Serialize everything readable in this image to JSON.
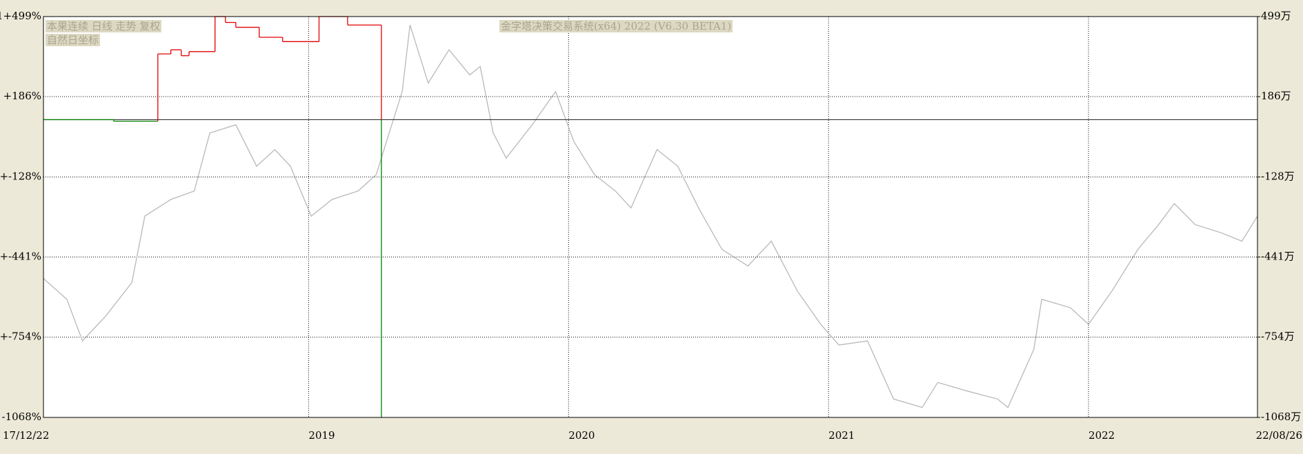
{
  "labels": {
    "symbol_line": "本果连续 日线 走势 复权",
    "axis_mode": "自然日坐标"
  },
  "chart_data": {
    "type": "line",
    "title": "金字塔决策交易系统(x64) 2022 (V6.30 BETA1)",
    "xlim": [
      2017.98,
      2022.65
    ],
    "xticks": [
      {
        "value": 2017.98,
        "label": "17/12/22"
      },
      2019,
      2020,
      2021,
      2022,
      {
        "value": 2022.65,
        "label": "22/08/26"
      }
    ],
    "ylim": [
      -1068,
      499
    ],
    "yticks": [
      {
        "value": 499,
        "label": "1+499%"
      },
      {
        "value": 186,
        "label": "+186%"
      },
      {
        "value": -128,
        "label": "+-128%"
      },
      {
        "value": -441,
        "label": "+-441%"
      },
      {
        "value": -754,
        "label": "+-754%"
      },
      {
        "value": -1068,
        "label": "-1068%"
      }
    ],
    "y2lim": [
      -1068,
      499
    ],
    "y2ticks": [
      {
        "value": 499,
        "label": "499万"
      },
      {
        "value": 186,
        "label": "186万"
      },
      {
        "value": -128,
        "label": "-128万"
      },
      {
        "value": -441,
        "label": "-441万"
      },
      {
        "value": -754,
        "label": "-754万"
      },
      {
        "value": -1068,
        "label": "-1068万"
      }
    ],
    "grid": true,
    "baseline": 96,
    "price": {
      "color": "#b8b8b8",
      "x": [
        2017.98,
        2018.07,
        2018.13,
        2018.22,
        2018.32,
        2018.37,
        2018.47,
        2018.56,
        2018.62,
        2018.72,
        2018.8,
        2018.87,
        2018.93,
        2019.01,
        2019.09,
        2019.19,
        2019.26,
        2019.31,
        2019.36,
        2019.39,
        2019.46,
        2019.54,
        2019.62,
        2019.66,
        2019.71,
        2019.76,
        2019.86,
        2019.95,
        2020.02,
        2020.1,
        2020.18,
        2020.24,
        2020.34,
        2020.42,
        2020.5,
        2020.59,
        2020.69,
        2020.78,
        2020.88,
        2020.97,
        2021.04,
        2021.15,
        2021.25,
        2021.36,
        2021.42,
        2021.53,
        2021.65,
        2021.69,
        2021.79,
        2021.82,
        2021.93,
        2022.0,
        2022.09,
        2022.19,
        2022.27,
        2022.33,
        2022.41,
        2022.51,
        2022.59,
        2022.65
      ],
      "values": [
        -525,
        -606,
        -769,
        -671,
        -541,
        -281,
        -216,
        -183,
        44,
        76,
        -86,
        -21,
        -86,
        -281,
        -216,
        -183,
        -119,
        44,
        206,
        466,
        239,
        369,
        271,
        304,
        44,
        -54,
        76,
        206,
        11,
        -119,
        -183,
        -249,
        -21,
        -86,
        -249,
        -411,
        -476,
        -379,
        -574,
        -704,
        -785,
        -769,
        -996,
        -1029,
        -931,
        -964,
        -996,
        -1029,
        -801,
        -606,
        -639,
        -704,
        -574,
        -411,
        -314,
        -232,
        -314,
        -346,
        -379,
        -281
      ]
    },
    "equity": {
      "up_color": "#e00000",
      "down_color": "#008000",
      "x": [
        2017.98,
        2018.25,
        2018.25,
        2018.42,
        2018.42,
        2018.47,
        2018.47,
        2018.51,
        2018.51,
        2018.54,
        2018.54,
        2018.64,
        2018.64,
        2018.68,
        2018.68,
        2018.72,
        2018.72,
        2018.81,
        2018.81,
        2018.9,
        2018.9,
        2019.04,
        2019.04,
        2019.15,
        2019.15,
        2019.28,
        2019.28,
        2019.28
      ],
      "values": [
        96,
        96,
        90,
        90,
        353,
        353,
        369,
        369,
        346,
        346,
        362,
        362,
        499,
        499,
        476,
        476,
        457,
        457,
        418,
        418,
        401,
        401,
        499,
        499,
        466,
        466,
        96,
        -1068
      ]
    }
  }
}
